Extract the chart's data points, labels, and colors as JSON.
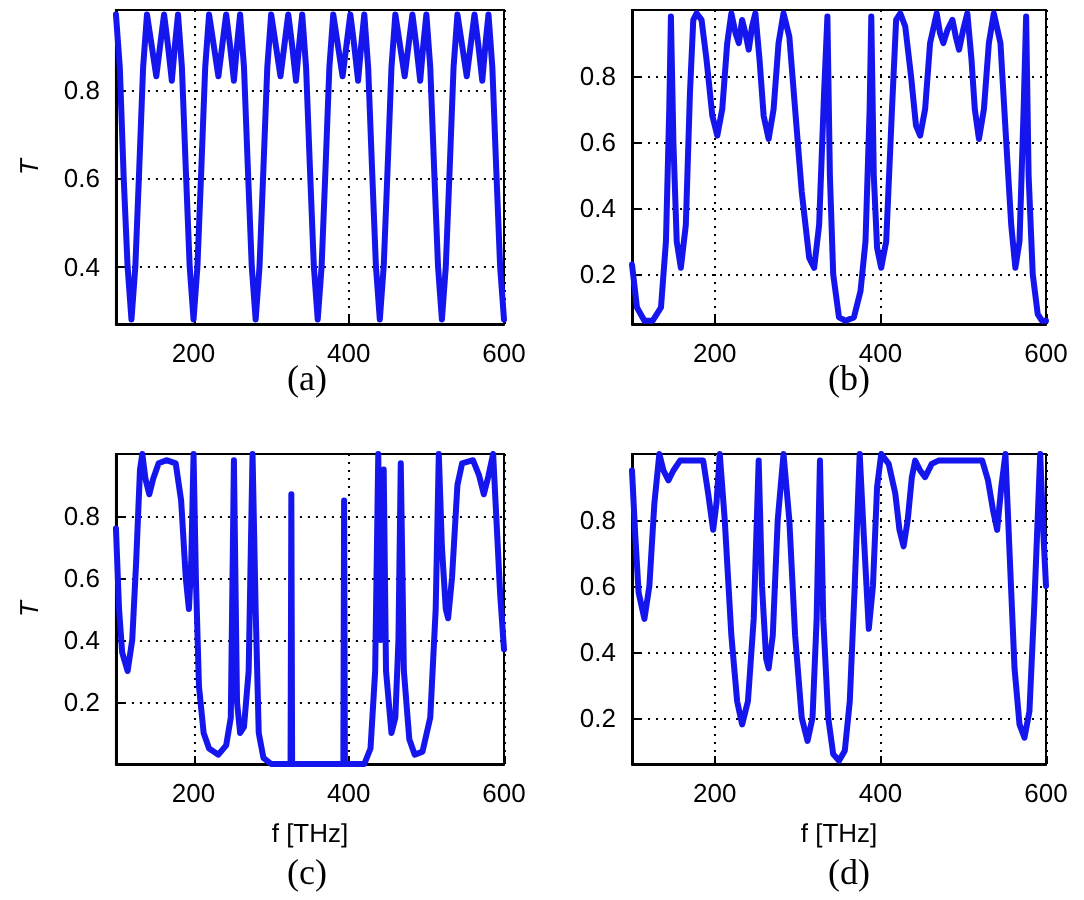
{
  "chart_data": [
    {
      "type": "line",
      "title": "(a)",
      "ylabel": "T",
      "color": "#1515ee",
      "marker": "none",
      "grid": true,
      "xlim": [
        100,
        600
      ],
      "xticks": [
        200,
        400,
        600
      ],
      "ylim": [
        0.27,
        0.98
      ],
      "yticks": [
        0.4,
        0.6,
        0.8
      ],
      "x": [
        100,
        105,
        110,
        115,
        120,
        125,
        130,
        135,
        140,
        146,
        152,
        157,
        162,
        167,
        172,
        176,
        180,
        185,
        190,
        195,
        200,
        205,
        210,
        215,
        220,
        226,
        232,
        237,
        242,
        247,
        252,
        256,
        260,
        265,
        270,
        275,
        280,
        285,
        290,
        295,
        300,
        306,
        312,
        317,
        322,
        327,
        332,
        336,
        340,
        345,
        350,
        355,
        360,
        365,
        370,
        375,
        380,
        386,
        392,
        397,
        402,
        407,
        412,
        416,
        420,
        425,
        430,
        435,
        440,
        445,
        450,
        455,
        460,
        466,
        472,
        477,
        482,
        487,
        492,
        496,
        500,
        505,
        510,
        515,
        520,
        525,
        530,
        535,
        540,
        546,
        552,
        557,
        562,
        567,
        572,
        576,
        580,
        585,
        590,
        595,
        600
      ],
      "values": [
        0.97,
        0.85,
        0.6,
        0.4,
        0.28,
        0.4,
        0.62,
        0.85,
        0.97,
        0.9,
        0.83,
        0.9,
        0.97,
        0.9,
        0.82,
        0.9,
        0.97,
        0.85,
        0.62,
        0.4,
        0.28,
        0.4,
        0.62,
        0.85,
        0.97,
        0.9,
        0.83,
        0.9,
        0.97,
        0.9,
        0.82,
        0.9,
        0.97,
        0.85,
        0.62,
        0.4,
        0.28,
        0.4,
        0.62,
        0.85,
        0.97,
        0.9,
        0.83,
        0.9,
        0.97,
        0.9,
        0.82,
        0.9,
        0.97,
        0.85,
        0.62,
        0.4,
        0.28,
        0.4,
        0.62,
        0.85,
        0.97,
        0.9,
        0.83,
        0.9,
        0.97,
        0.9,
        0.82,
        0.9,
        0.97,
        0.85,
        0.62,
        0.4,
        0.28,
        0.4,
        0.62,
        0.85,
        0.97,
        0.9,
        0.83,
        0.9,
        0.97,
        0.9,
        0.82,
        0.9,
        0.97,
        0.85,
        0.62,
        0.4,
        0.28,
        0.4,
        0.62,
        0.85,
        0.97,
        0.9,
        0.83,
        0.9,
        0.97,
        0.9,
        0.82,
        0.9,
        0.97,
        0.85,
        0.62,
        0.4,
        0.28
      ]
    },
    {
      "type": "line",
      "title": "(b)",
      "color": "#1515ee",
      "marker": "none",
      "grid": true,
      "xlim": [
        100,
        600
      ],
      "xticks": [
        200,
        400,
        600
      ],
      "ylim": [
        0.05,
        1
      ],
      "yticks": [
        0.2,
        0.4,
        0.6,
        0.8
      ],
      "x": [
        100,
        106,
        115,
        125,
        135,
        141,
        145,
        147,
        150,
        154,
        159,
        165,
        170,
        174,
        178,
        184,
        190,
        197,
        203,
        209,
        215,
        220,
        225,
        229,
        233,
        237,
        241,
        245,
        249,
        254,
        259,
        265,
        271,
        277,
        283,
        290,
        297,
        305,
        314,
        320,
        326,
        332,
        336,
        339,
        343,
        350,
        358,
        368,
        376,
        382,
        387,
        389,
        392,
        396,
        401,
        407,
        414,
        419,
        424,
        430,
        437,
        443,
        448,
        454,
        460,
        468,
        472,
        476,
        481,
        487,
        491,
        495,
        500,
        505,
        510,
        514,
        519,
        525,
        531,
        537,
        545,
        552,
        558,
        563,
        568,
        573,
        576,
        579,
        584,
        590,
        595,
        600
      ],
      "values": [
        0.23,
        0.1,
        0.06,
        0.06,
        0.1,
        0.3,
        0.7,
        0.98,
        0.6,
        0.3,
        0.22,
        0.35,
        0.75,
        0.97,
        0.99,
        0.97,
        0.85,
        0.68,
        0.62,
        0.7,
        0.9,
        0.99,
        0.93,
        0.9,
        0.97,
        0.93,
        0.88,
        0.95,
        0.99,
        0.85,
        0.68,
        0.61,
        0.7,
        0.9,
        0.99,
        0.92,
        0.7,
        0.45,
        0.25,
        0.22,
        0.35,
        0.75,
        0.98,
        0.5,
        0.2,
        0.07,
        0.06,
        0.07,
        0.15,
        0.3,
        0.7,
        0.98,
        0.5,
        0.28,
        0.22,
        0.3,
        0.7,
        0.97,
        0.99,
        0.95,
        0.8,
        0.65,
        0.62,
        0.7,
        0.9,
        0.99,
        0.93,
        0.9,
        0.94,
        0.97,
        0.92,
        0.88,
        0.94,
        0.99,
        0.85,
        0.7,
        0.61,
        0.7,
        0.9,
        0.99,
        0.9,
        0.6,
        0.35,
        0.22,
        0.3,
        0.7,
        0.98,
        0.5,
        0.2,
        0.08,
        0.06,
        0.06
      ]
    },
    {
      "type": "line",
      "title": "(c)",
      "xlabel": "f [THz]",
      "ylabel": "T",
      "color": "#1515ee",
      "marker": "none",
      "grid": true,
      "xlim": [
        100,
        600
      ],
      "xticks": [
        200,
        400,
        600
      ],
      "ylim": [
        0,
        1
      ],
      "yticks": [
        0.2,
        0.4,
        0.6,
        0.8
      ],
      "x": [
        100,
        104,
        108,
        115,
        121,
        126,
        131,
        134,
        138,
        143,
        148,
        155,
        165,
        177,
        184,
        190,
        194,
        197,
        200,
        203,
        207,
        213,
        220,
        232,
        242,
        248,
        252,
        256,
        260,
        265,
        271,
        276,
        280,
        284,
        290,
        300,
        320,
        325,
        326,
        327,
        340,
        393,
        394,
        395,
        420,
        428,
        434,
        438,
        441,
        445,
        448,
        455,
        460,
        464,
        467,
        471,
        478,
        485,
        495,
        505,
        512,
        516,
        520,
        525,
        528,
        533,
        540,
        546,
        560,
        568,
        574,
        580,
        586,
        590,
        595,
        600
      ],
      "values": [
        0.76,
        0.5,
        0.36,
        0.3,
        0.4,
        0.65,
        0.95,
        1,
        0.92,
        0.87,
        0.92,
        0.97,
        0.98,
        0.97,
        0.85,
        0.6,
        0.5,
        0.65,
        1,
        0.6,
        0.25,
        0.1,
        0.05,
        0.03,
        0.06,
        0.15,
        0.98,
        0.2,
        0.1,
        0.12,
        0.3,
        1,
        0.5,
        0.1,
        0.02,
        0,
        0,
        0,
        0.87,
        0,
        0,
        0,
        0.85,
        0,
        0,
        0.05,
        0.3,
        1,
        0.4,
        0.95,
        0.3,
        0.1,
        0.15,
        0.4,
        0.97,
        0.3,
        0.08,
        0.03,
        0.04,
        0.15,
        0.5,
        1,
        0.7,
        0.5,
        0.47,
        0.6,
        0.9,
        0.97,
        0.98,
        0.93,
        0.87,
        0.93,
        1,
        0.8,
        0.55,
        0.37
      ]
    },
    {
      "type": "line",
      "title": "(d)",
      "xlabel": "f [THz]",
      "color": "#1515ee",
      "marker": "none",
      "grid": true,
      "xlim": [
        100,
        600
      ],
      "xticks": [
        200,
        400,
        600
      ],
      "ylim": [
        0.06,
        1
      ],
      "yticks": [
        0.2,
        0.4,
        0.6,
        0.8
      ],
      "x": [
        100,
        104,
        108,
        115,
        121,
        127,
        133,
        138,
        144,
        150,
        158,
        186,
        192,
        198,
        202,
        206,
        212,
        220,
        227,
        233,
        240,
        247,
        253,
        257,
        262,
        265,
        270,
        276,
        283,
        290,
        297,
        305,
        312,
        318,
        323,
        327,
        331,
        337,
        343,
        350,
        357,
        363,
        369,
        375,
        380,
        386,
        391,
        396,
        401,
        410,
        418,
        423,
        428,
        433,
        438,
        442,
        448,
        454,
        462,
        470,
        523,
        530,
        536,
        541,
        546,
        551,
        556,
        562,
        568,
        574,
        580,
        586,
        593,
        597,
        600
      ],
      "values": [
        0.95,
        0.75,
        0.58,
        0.5,
        0.6,
        0.85,
        1,
        0.95,
        0.92,
        0.95,
        0.98,
        0.98,
        0.88,
        0.77,
        0.85,
        1,
        0.8,
        0.45,
        0.25,
        0.18,
        0.25,
        0.5,
        0.98,
        0.6,
        0.38,
        0.35,
        0.45,
        0.8,
        1,
        0.8,
        0.45,
        0.2,
        0.13,
        0.2,
        0.5,
        0.98,
        0.5,
        0.2,
        0.09,
        0.07,
        0.1,
        0.25,
        0.6,
        1,
        0.75,
        0.47,
        0.6,
        0.9,
        1,
        0.97,
        0.88,
        0.77,
        0.72,
        0.8,
        0.93,
        0.98,
        0.95,
        0.93,
        0.97,
        0.98,
        0.98,
        0.92,
        0.83,
        0.77,
        0.9,
        1,
        0.7,
        0.35,
        0.18,
        0.14,
        0.22,
        0.55,
        1,
        0.75,
        0.6
      ]
    }
  ]
}
